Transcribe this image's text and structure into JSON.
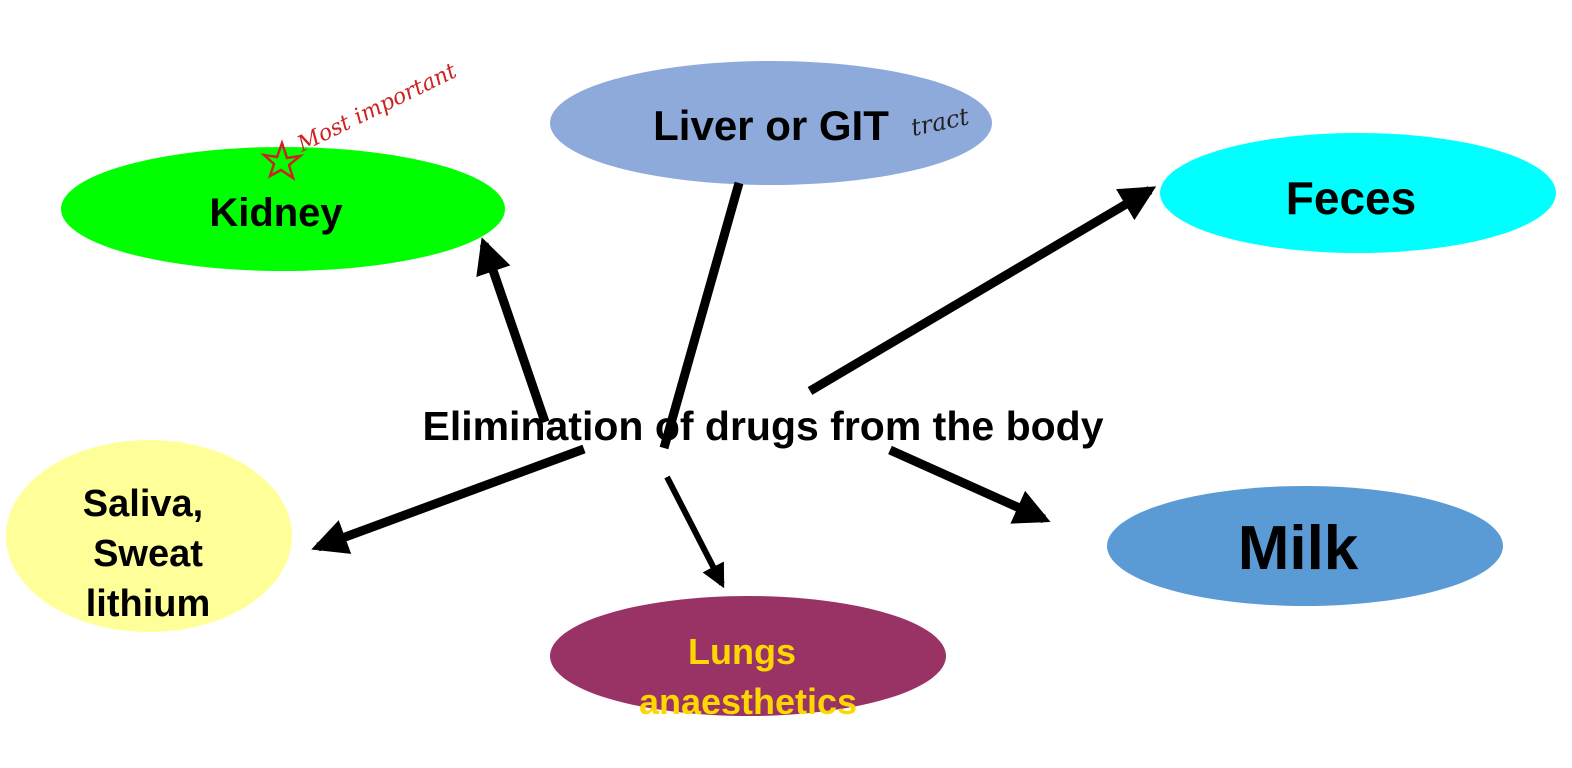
{
  "center": {
    "title": "Elimination of drugs from the body"
  },
  "nodes": {
    "kidney": {
      "label": "Kidney",
      "color": "#00ff00",
      "text_color": "#000000"
    },
    "liver": {
      "label": "Liver or GIT",
      "color": "#8eaadb",
      "text_color": "#000000"
    },
    "feces": {
      "label": "Feces",
      "color": "#00ffff",
      "text_color": "#000000"
    },
    "saliva": {
      "line1": "Saliva,",
      "line2": "Sweat",
      "line3": "lithium",
      "color": "#ffff99",
      "text_color": "#000000"
    },
    "lungs": {
      "line1": "Lungs",
      "line2": "anaesthetics",
      "color": "#993366",
      "text_color": "#ffd700"
    },
    "milk": {
      "label": "Milk",
      "color": "#5b9bd5",
      "text_color": "#000000"
    }
  },
  "annotations": {
    "most_important": "Most important",
    "tract": "tract",
    "annotation_color": "#cc2222",
    "star_icon": "star-icon"
  },
  "arrow_color": "#000000"
}
